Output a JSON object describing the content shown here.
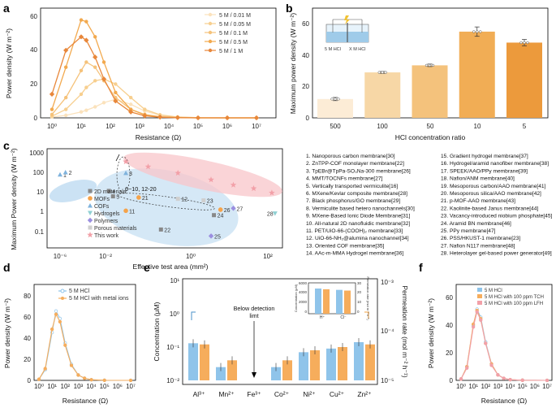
{
  "panel_labels": [
    "a",
    "b",
    "c",
    "d",
    "e",
    "f"
  ],
  "colors": {
    "a": [
      "#fbe2bc",
      "#f7cf8f",
      "#f5c27a",
      "#f2a94e",
      "#e8873a"
    ],
    "b": [
      "#fcecd6",
      "#f7d7a6",
      "#f4c27c",
      "#f1ad55",
      "#ec9a3c"
    ],
    "blue": "#8fc4ea",
    "orange": "#f6ad5c",
    "pink": "#f2a0a8",
    "shade_blue": "#b9d8f0",
    "shade_pink": "#f8c6c9"
  },
  "chart_data": [
    {
      "id": "a",
      "type": "line",
      "ylabel": "Power density (W m⁻²)",
      "xlabel": "Resistance (Ω)",
      "ylim": [
        0,
        65
      ],
      "yticks": [
        "0",
        "20",
        "40",
        "60"
      ],
      "xlog": true,
      "xlim": [
        0.6,
        16000000.0
      ],
      "xticks": [
        "10⁰",
        "10¹",
        "10²",
        "10³",
        "10⁴",
        "10⁵",
        "10⁶",
        "10⁷"
      ],
      "x": [
        1,
        3,
        10,
        15,
        30,
        60,
        150,
        500,
        1500,
        5000,
        20000,
        100000,
        1000000,
        10000000
      ],
      "series": [
        {
          "name": "5 M / 0.01 M",
          "values": [
            0.5,
            1.5,
            3.5,
            4.5,
            6.5,
            9,
            11,
            8,
            4,
            1.5,
            0.4,
            0.1,
            0,
            0
          ]
        },
        {
          "name": "5 M / 0.05 M",
          "values": [
            1,
            5,
            14,
            18,
            22,
            23,
            20,
            12,
            5,
            1.8,
            0.5,
            0.1,
            0,
            0
          ]
        },
        {
          "name": "5 M / 0.1 M",
          "values": [
            2,
            12,
            28,
            33,
            30,
            22,
            12,
            5,
            2,
            0.6,
            0.2,
            0,
            0,
            0
          ]
        },
        {
          "name": "5 M / 0.5 M",
          "values": [
            5,
            30,
            58,
            57,
            48,
            33,
            15,
            5,
            1.8,
            0.6,
            0.2,
            0,
            0,
            0
          ]
        },
        {
          "name": "5 M / 1 M",
          "values": [
            14,
            40,
            48,
            46,
            36,
            23,
            10,
            3.5,
            1.2,
            0.4,
            0.1,
            0,
            0,
            0
          ]
        }
      ]
    },
    {
      "id": "b",
      "type": "bar",
      "ylabel": "Maximum power density (W m⁻²)",
      "xlabel": "HCl concentration ratio",
      "categories": [
        "500",
        "100",
        "50",
        "10",
        "5"
      ],
      "values": [
        12,
        29,
        33.5,
        55,
        48
      ],
      "errors": [
        1,
        0.6,
        0.8,
        3,
        2
      ],
      "ylim": [
        0,
        70
      ],
      "yticks": [
        "0",
        "20",
        "40",
        "60"
      ],
      "inset_labels": [
        "5 M HCl",
        "X M HCl"
      ]
    },
    {
      "id": "c",
      "type": "scatter",
      "ylabel": "Maximum Power density (W m⁻²)",
      "xlabel": "Effective test area (mm²)",
      "xticks": [
        "10⁻⁶",
        "10⁻²",
        "10⁰",
        "10²"
      ],
      "yticks": [
        "0.1",
        "1",
        "10",
        "100",
        "1000"
      ],
      "legend": [
        "2D materials",
        "MOFs",
        "COFs",
        "Hydrogels",
        "Polymers",
        "Porous materials",
        "This work"
      ],
      "annotation": "6~10, 12-20",
      "points": [
        {
          "label": "1",
          "x": 1e-06,
          "y": 100,
          "cls": "COFs"
        },
        {
          "label": "2",
          "x": 3e-06,
          "y": 130,
          "cls": "COFs"
        },
        {
          "label": "3",
          "x": 0.03,
          "y": 120,
          "cls": "COFs"
        },
        {
          "label": "4",
          "x": 0.012,
          "y": 15,
          "cls": "2D materials"
        },
        {
          "label": "5",
          "x": 0.015,
          "y": 8,
          "cls": "2D materials"
        },
        {
          "label": "11",
          "x": 0.03,
          "y": 1.5,
          "cls": "MOFs"
        },
        {
          "label": "12",
          "x": 0.5,
          "y": 6,
          "cls": "Porous materials"
        },
        {
          "label": "21",
          "x": 0.06,
          "y": 7,
          "cls": "MOFs"
        },
        {
          "label": "22",
          "x": 0.2,
          "y": 0.17,
          "cls": "2D materials"
        },
        {
          "label": "23",
          "x": 2,
          "y": 5,
          "cls": "Porous materials"
        },
        {
          "label": "24",
          "x": 3.5,
          "y": 0.9,
          "cls": "2D materials"
        },
        {
          "label": "25",
          "x": 3,
          "y": 0.08,
          "cls": "Polymers"
        },
        {
          "label": "26",
          "x": 5,
          "y": 1.7,
          "cls": "MOFs"
        },
        {
          "label": "27",
          "x": 10,
          "y": 2,
          "cls": "Polymers"
        },
        {
          "label": "28",
          "x": 95,
          "y": 1.1,
          "cls": "Hydrogels"
        }
      ],
      "this_work": [
        {
          "x": 0.03,
          "y": 450
        },
        {
          "x": 0.1,
          "y": 250
        },
        {
          "x": 0.5,
          "y": 120
        },
        {
          "x": 3,
          "y": 55
        },
        {
          "x": 10,
          "y": 30
        },
        {
          "x": 30,
          "y": 20
        },
        {
          "x": 80,
          "y": 12
        }
      ]
    },
    {
      "id": "d",
      "type": "line",
      "ylabel": "Power density (W m⁻²)",
      "xlabel": "Resistance (Ω)",
      "ylim": [
        0,
        90
      ],
      "yticks": [
        "0",
        "20",
        "40",
        "60",
        "80"
      ],
      "xticks": [
        "10⁰",
        "10¹",
        "10²",
        "10³",
        "10⁴",
        "10⁵",
        "10⁶",
        "10⁷"
      ],
      "x": [
        1,
        3,
        10,
        20,
        40,
        100,
        300,
        1000,
        3000,
        10000,
        100000,
        10000000
      ],
      "series": [
        {
          "name": "5 M HCl",
          "values": [
            1,
            10,
            45,
            65,
            58,
            35,
            15,
            5,
            2,
            0.6,
            0.1,
            0
          ]
        },
        {
          "name": "5 M HCl with metal ions",
          "values": [
            1,
            11,
            48,
            62,
            55,
            33,
            14,
            5,
            2,
            0.6,
            0.1,
            0
          ]
        }
      ]
    },
    {
      "id": "e",
      "type": "bar",
      "ylabel": "Concentration (μM)",
      "y2label": "Permeation rate (mol m⁻² h⁻¹)",
      "categories": [
        "Al³⁺",
        "Mn²⁺",
        "Fe³⁺",
        "Co²⁺",
        "Ni²⁺",
        "Cu²⁺",
        "Zn²⁺"
      ],
      "yticks": [
        "10⁻²",
        "10⁻¹",
        "10⁰",
        "10¹"
      ],
      "y2ticks": [
        "10⁻⁵",
        "10⁻⁴",
        "10⁻³"
      ],
      "series": [
        {
          "name": "Concentration",
          "values": [
            0.13,
            0.025,
            null,
            0.025,
            0.07,
            0.09,
            0.14
          ]
        },
        {
          "name": "Permeation rate",
          "values": [
            0.12,
            0.04,
            null,
            0.04,
            0.08,
            0.1,
            0.12
          ]
        }
      ],
      "annotation": [
        "Below detection",
        "limt"
      ],
      "inset": {
        "categories": [
          "H⁺",
          "Cl⁻"
        ],
        "values": [
          5600,
          5300
        ],
        "ylabel": "Concentration (μM)",
        "y2label": "Permeation rate (mol m⁻² h⁻¹)",
        "yticks": [
          "0",
          "2000",
          "4000",
          "6000"
        ],
        "y2ticks": [
          "0",
          "10",
          "20",
          "30"
        ]
      }
    },
    {
      "id": "f",
      "type": "line",
      "ylabel": "Power density (W m⁻²)",
      "xlabel": "Resistance (Ω)",
      "ylim": [
        0,
        70
      ],
      "yticks": [
        "0",
        "20",
        "40",
        "60"
      ],
      "xticks": [
        "10⁰",
        "10¹",
        "10²",
        "10³",
        "10⁴",
        "10⁵",
        "10⁶",
        "10⁷"
      ],
      "x": [
        1,
        3,
        10,
        20,
        40,
        100,
        300,
        1000,
        3000,
        10000,
        100000,
        10000000
      ],
      "series": [
        {
          "name": "5 M HCl",
          "values": [
            1,
            10,
            40,
            52,
            46,
            28,
            12,
            4,
            1.5,
            0.5,
            0.1,
            0
          ]
        },
        {
          "name": "5 M HCl with 100 ppm TCH",
          "values": [
            1,
            10,
            41,
            51,
            45,
            27,
            12,
            4,
            1.5,
            0.5,
            0.1,
            0
          ]
        },
        {
          "name": "5 M HCl with 100 ppm LFH",
          "values": [
            1,
            9,
            39,
            50,
            44,
            27,
            11,
            4,
            1.5,
            0.5,
            0.1,
            0
          ]
        }
      ]
    }
  ],
  "references": [
    "1. Nanoporous carbon membrane[30]",
    "2. ZnTPP-COF monolayer membrane[22]",
    "3. TpEBr@TpPa-SO₃Na-300 membrane[26]",
    "4. MMT/TOCNFs membrane[27]",
    "5. Vertically transported vermiculite[16]",
    "6. MXene/Kevlar composite membrane[28]",
    "7. Black phosphorus/GO membrane[29]",
    "8. Vermiculite based hetero nanochannels[30]",
    "9. MXene-Based Ionic Diode Membrane[31]",
    "10. All-natural 2D nanofluidic membrane[32]",
    "11. PET/UiO-66-(COOH)₂ membrane[33]",
    "12. UiO-66-NH₂@alumina nanochannel[34]",
    "13. Oriented COF membrane[35]",
    "14. AAc-m-MMA Hydrogel membrane[36]",
    "15. Gradient hydrogel membrane[37]",
    "16. Hydrogel/aramid nanofiber membrane[38]",
    "17. SPEEK/AAO/PPy membrane[39]",
    "18. Nafion/ANM membrane[40]",
    "19. Mesoporous carbon/AAO membrane[41]",
    "20. Mesoporous silica/AAO membrane[42]",
    "21. p-MOF-AAO membrane[43]",
    "22. Kaolinite-based Janus membrane[44]",
    "23. Vacancy-introduced niobium phosphate[45]",
    "24. Aramid BN membrane[46]",
    "25. PPy membrane[47]",
    "26. PSS/HKUST-1 membrane[23]",
    "27. Nafion N117 membrane[48]",
    "28. Heterolayer gel-based power generator[49]"
  ]
}
